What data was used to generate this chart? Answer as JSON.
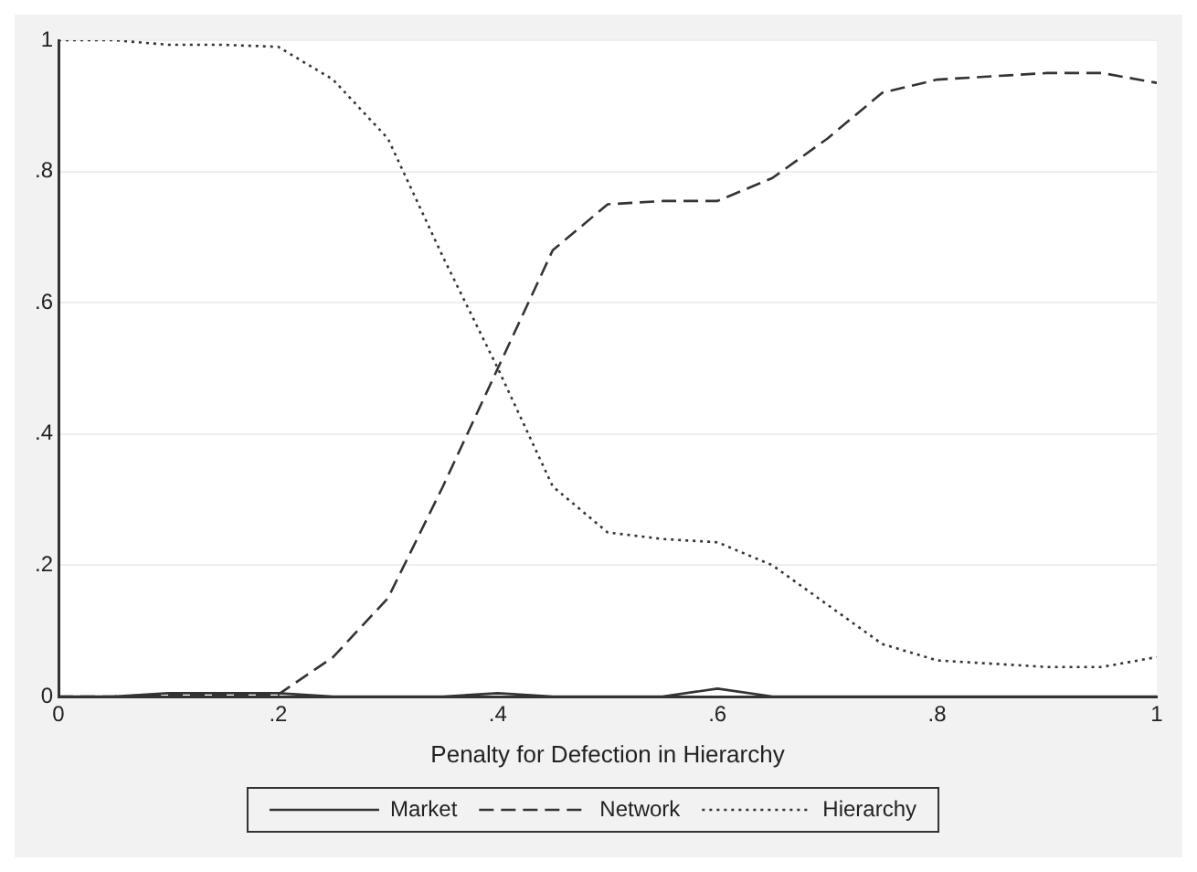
{
  "chart_data": {
    "type": "line",
    "xlabel": "Penalty for Defection in Hierarchy",
    "x": [
      0,
      0.05,
      0.1,
      0.15,
      0.2,
      0.25,
      0.3,
      0.35,
      0.4,
      0.45,
      0.5,
      0.55,
      0.6,
      0.65,
      0.7,
      0.75,
      0.8,
      0.85,
      0.9,
      0.95,
      1
    ],
    "series": [
      {
        "name": "Market",
        "color": "#333333",
        "line_style": "solid",
        "values": [
          0,
          0,
          0.005,
          0.005,
          0.005,
          0,
          0,
          0,
          0.005,
          0,
          0,
          0,
          0.012,
          0,
          0,
          0,
          0,
          0,
          0,
          0,
          0
        ]
      },
      {
        "name": "Network",
        "color": "#333333",
        "line_style": "dashed",
        "values": [
          0,
          0,
          0.003,
          0.003,
          0.003,
          0.06,
          0.15,
          0.32,
          0.5,
          0.68,
          0.75,
          0.755,
          0.755,
          0.79,
          0.85,
          0.92,
          0.94,
          0.945,
          0.95,
          0.95,
          0.935
        ]
      },
      {
        "name": "Hierarchy",
        "color": "#333333",
        "line_style": "dotted",
        "values": [
          1,
          1,
          0.993,
          0.993,
          0.99,
          0.94,
          0.85,
          0.67,
          0.5,
          0.32,
          0.25,
          0.24,
          0.235,
          0.2,
          0.14,
          0.08,
          0.055,
          0.05,
          0.045,
          0.045,
          0.06
        ]
      }
    ],
    "xlim": [
      0,
      1
    ],
    "xticks": [
      0,
      {
        "value": 0.2,
        "label": ".2"
      },
      {
        "value": 0.4,
        "label": ".4"
      },
      {
        "value": 0.6,
        "label": ".6"
      },
      {
        "value": 0.8,
        "label": ".8"
      },
      1
    ],
    "ylim": [
      0,
      1
    ],
    "yticks": [
      0,
      {
        "value": 0.2,
        "label": ".2"
      },
      {
        "value": 0.4,
        "label": ".4"
      },
      {
        "value": 0.6,
        "label": ".6"
      },
      {
        "value": 0.8,
        "label": ".8"
      },
      1
    ],
    "grid": "y",
    "legend": "bottom",
    "marker": "none"
  }
}
